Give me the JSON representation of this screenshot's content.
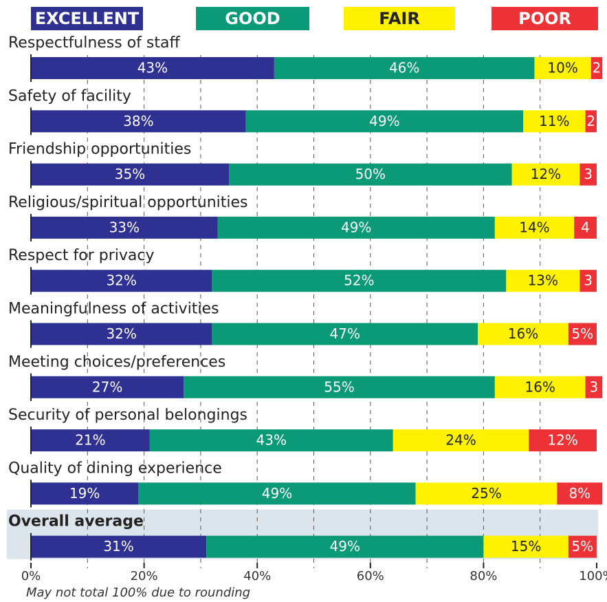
{
  "chart_data": {
    "type": "stacked_bar_horizontal",
    "categories": [
      "Respectfulness of staff",
      "Safety of facility",
      "Friendship opportunities",
      "Religious/spiritual opportunities",
      "Respect for privacy",
      "Meaningfulness of activities",
      "Meeting choices/preferences",
      "Security of personal belongings",
      "Quality of dining experience",
      "Overall average"
    ],
    "highlight_category": 9,
    "series": [
      {
        "name": "EXCELLENT",
        "color": "#2e3192",
        "text_color": "#ffffff",
        "values": [
          43,
          38,
          35,
          33,
          32,
          32,
          27,
          21,
          19,
          31
        ],
        "value_labels": [
          "43%",
          "38%",
          "35%",
          "33%",
          "32%",
          "32%",
          "27%",
          "21%",
          "19%",
          "31%"
        ]
      },
      {
        "name": "GOOD",
        "color": "#0b9a78",
        "text_color": "#ffffff",
        "values": [
          46,
          49,
          50,
          49,
          52,
          47,
          55,
          43,
          49,
          49
        ],
        "value_labels": [
          "46%",
          "49%",
          "50%",
          "49%",
          "52%",
          "47%",
          "55%",
          "43%",
          "49%",
          "49%"
        ]
      },
      {
        "name": "FAIR",
        "color": "#fff200",
        "text_color": "#222222",
        "values": [
          10,
          11,
          12,
          14,
          13,
          16,
          16,
          24,
          25,
          15
        ],
        "value_labels": [
          "10%",
          "11%",
          "12%",
          "14%",
          "13%",
          "16%",
          "16%",
          "24%",
          "25%",
          "15%"
        ]
      },
      {
        "name": "POOR",
        "color": "#ec3237",
        "text_color": "#ffffff",
        "values": [
          2,
          2,
          3,
          4,
          3,
          5,
          3,
          12,
          8,
          5
        ],
        "value_labels": [
          "2",
          "2",
          "3",
          "4",
          "3",
          "5%",
          "3",
          "12%",
          "8%",
          "5%"
        ]
      }
    ],
    "xlim": [
      0,
      100
    ],
    "xticks": [
      {
        "value": 0,
        "label": "0%"
      },
      {
        "value": 20,
        "label": "20%"
      },
      {
        "value": 40,
        "label": "40%"
      },
      {
        "value": 60,
        "label": "60%"
      },
      {
        "value": 80,
        "label": "80%"
      },
      {
        "value": 100,
        "label": "100%"
      }
    ],
    "minor_xticks": [
      10,
      30,
      50,
      70,
      90
    ],
    "grid": true,
    "footnote": "May not total 100% due to rounding"
  }
}
